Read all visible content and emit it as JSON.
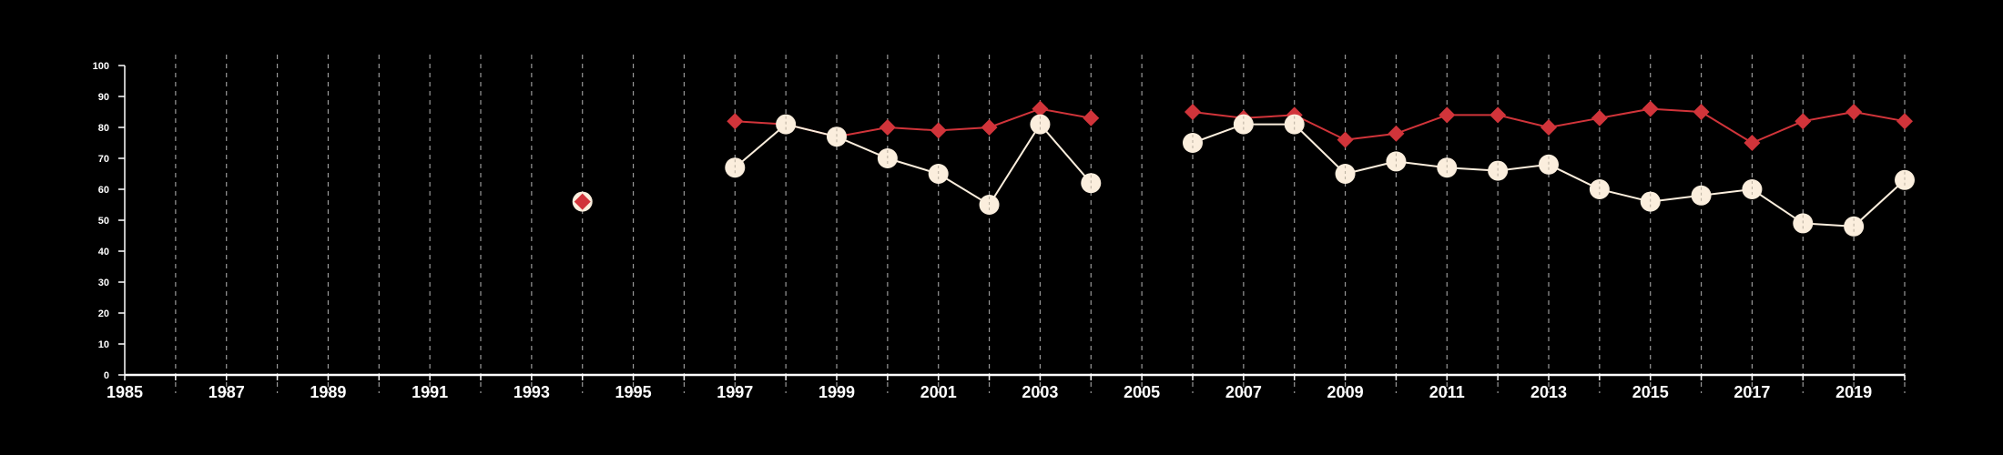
{
  "chart_data": {
    "type": "line",
    "title": "",
    "xlabel": "",
    "ylabel": "",
    "xlim": [
      1985,
      2020
    ],
    "ylim": [
      0,
      100
    ],
    "y_ticks": [
      0,
      10,
      20,
      30,
      40,
      50,
      60,
      70,
      80,
      90,
      100
    ],
    "x_tick_labels": [
      1985,
      1987,
      1989,
      1991,
      1993,
      1995,
      1997,
      1999,
      2001,
      2003,
      2005,
      2007,
      2009,
      2011,
      2013,
      2015,
      2017,
      2019
    ],
    "grid": "vertical dashed every year",
    "legend": "none",
    "colors": {
      "background": "#000000",
      "axis": "#ffffff",
      "grid": "#9a9a9a",
      "red": "#d1343a",
      "cream": "#fbeedd"
    },
    "series": [
      {
        "marker": "diamond",
        "color": "#d1343a",
        "points": [
          [
            1994,
            56
          ],
          [
            1997,
            82
          ],
          [
            1998,
            81
          ],
          [
            1999,
            77
          ],
          [
            2000,
            80
          ],
          [
            2001,
            79
          ],
          [
            2002,
            80
          ],
          [
            2003,
            86
          ],
          [
            2004,
            83
          ],
          [
            2006,
            85
          ],
          [
            2007,
            83
          ],
          [
            2008,
            84
          ],
          [
            2009,
            76
          ],
          [
            2010,
            78
          ],
          [
            2011,
            84
          ],
          [
            2012,
            84
          ],
          [
            2013,
            80
          ],
          [
            2014,
            83
          ],
          [
            2015,
            86
          ],
          [
            2016,
            85
          ],
          [
            2017,
            75
          ],
          [
            2018,
            82
          ],
          [
            2019,
            85
          ],
          [
            2020,
            82
          ]
        ]
      },
      {
        "marker": "circle",
        "color": "#fbeedd",
        "points": [
          [
            1994,
            56
          ],
          [
            1997,
            67
          ],
          [
            1998,
            81
          ],
          [
            1999,
            77
          ],
          [
            2000,
            70
          ],
          [
            2001,
            65
          ],
          [
            2002,
            55
          ],
          [
            2003,
            81
          ],
          [
            2004,
            62
          ],
          [
            2006,
            75
          ],
          [
            2007,
            81
          ],
          [
            2008,
            81
          ],
          [
            2009,
            65
          ],
          [
            2010,
            69
          ],
          [
            2011,
            67
          ],
          [
            2012,
            66
          ],
          [
            2013,
            68
          ],
          [
            2014,
            60
          ],
          [
            2015,
            56
          ],
          [
            2016,
            58
          ],
          [
            2017,
            60
          ],
          [
            2018,
            49
          ],
          [
            2019,
            48
          ],
          [
            2020,
            63
          ]
        ]
      }
    ]
  }
}
